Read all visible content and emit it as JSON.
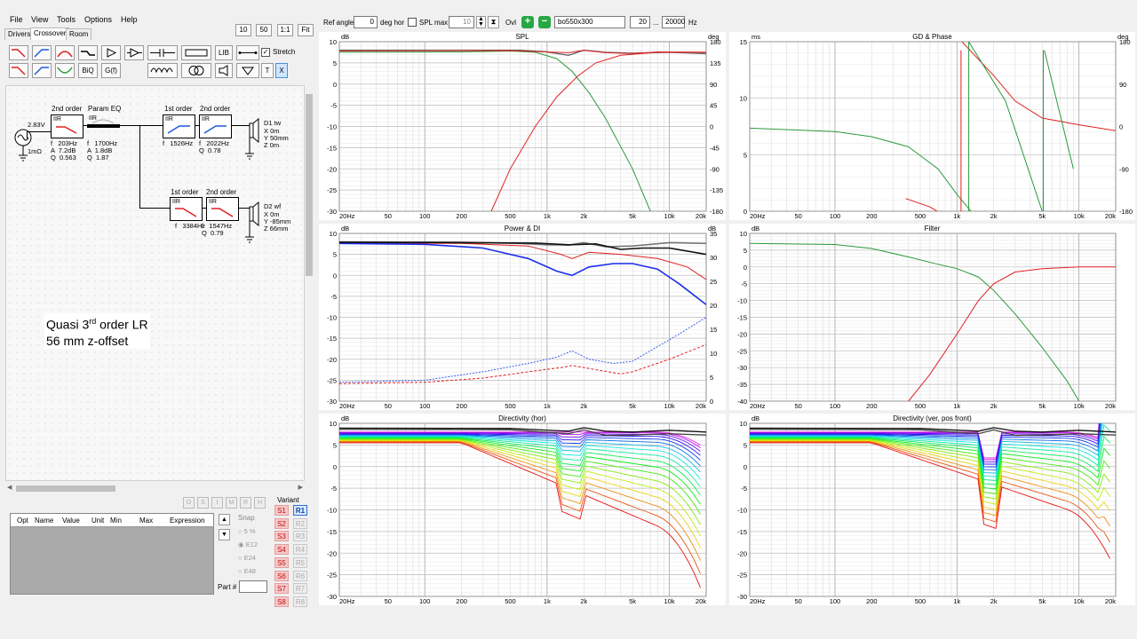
{
  "menu": [
    "File",
    "View",
    "Tools",
    "Options",
    "Help"
  ],
  "tabs": [
    "Drivers",
    "Crossover",
    "Room"
  ],
  "zoom_buttons": [
    "10",
    "50",
    "1:1",
    "Fit"
  ],
  "toolbar": {
    "biq": "BiQ",
    "gf": "G(f)",
    "lib": "LIB",
    "stretch": "Stretch",
    "t": "T",
    "x": "X"
  },
  "top_controls": {
    "ref_angle_label": "Ref angle",
    "ref_angle_value": "0",
    "deg_hor": "deg hor",
    "spl_max": "SPL max",
    "spl_max_value": "10",
    "ovl": "Ovl",
    "ovl_value": "bo550x300",
    "f_min": "20",
    "dots": "...",
    "f_max": "20000",
    "hz": "Hz"
  },
  "schematic": {
    "source": {
      "voltage": "2.83V",
      "impedance": "1mΩ"
    },
    "hp_block": {
      "title": "2nd order",
      "type": "IIR",
      "params": "f   203Hz\nA  7.2dB\nQ  0.563"
    },
    "peq_block": {
      "title": "Param EQ",
      "type": "IIR",
      "params": "f   1700Hz\nA  1.8dB\nQ  1.87"
    },
    "tw_hp1": {
      "title": "1st order",
      "type": "IIR",
      "params": "f   1526Hz"
    },
    "tw_hp2": {
      "title": "2nd order",
      "type": "IIR",
      "params": "f   2022Hz\nQ  0.78"
    },
    "wf_lp1": {
      "title": "1st order",
      "type": "IIR",
      "params": "f   3384Hz"
    },
    "wf_lp2": {
      "title": "2nd order",
      "type": "IIR",
      "params": "f   1547Hz\nQ  0.79"
    },
    "d1": {
      "name": "D1 tw",
      "lines": "X 0m\nY 50mm\nZ 0m"
    },
    "d2": {
      "name": "D2 wf",
      "lines": "X 0m\nY -85mm\nZ 66mm"
    },
    "note1_pre": "Quasi 3",
    "note1_sup": "rd",
    "note1_post": " order LR",
    "note2": "56 mm z-offset"
  },
  "param_table": {
    "columns": [
      "Opt",
      "Name",
      "Value",
      "Unit",
      "Min",
      "Max",
      "Expression"
    ],
    "side_buttons": [
      "O",
      "S",
      "I",
      "M",
      "R",
      "H"
    ],
    "snap": "Snap",
    "snap_options": [
      "5 %",
      "E12",
      "E24",
      "E48"
    ],
    "part": "Part #"
  },
  "variants": {
    "label": "Variant",
    "s": [
      "S1",
      "S2",
      "S3",
      "S4",
      "S5",
      "S6",
      "S7",
      "S8"
    ],
    "r": [
      "R1",
      "R2",
      "R3",
      "R4",
      "R5",
      "R6",
      "R7",
      "R8"
    ]
  },
  "graphs": {
    "spl": {
      "title": "SPL",
      "yunit": "dB",
      "y2unit": "deg",
      "yticks": [
        "10",
        "5",
        "0",
        "-5",
        "-10",
        "-15",
        "-20",
        "-25",
        "-30"
      ],
      "y2ticks": [
        "180",
        "135",
        "90",
        "45",
        "0",
        "-45",
        "-90",
        "-135",
        "-180"
      ]
    },
    "gd": {
      "title": "GD & Phase",
      "yunit": "ms",
      "y2unit": "deg",
      "yticks": [
        "15",
        "10",
        "5",
        "0"
      ],
      "y2ticks": [
        "180",
        "90",
        "0",
        "-90",
        "-180"
      ]
    },
    "power": {
      "title": "Power & DI",
      "yunit": "dB",
      "y2unit": "dB",
      "yticks": [
        "10",
        "5",
        "0",
        "-5",
        "-10",
        "-15",
        "-20",
        "-25",
        "-30"
      ],
      "y2ticks": [
        "35",
        "30",
        "25",
        "20",
        "15",
        "10",
        "5",
        "0"
      ]
    },
    "filter": {
      "title": "Filter",
      "yunit": "dB",
      "yticks": [
        "10",
        "5",
        "0",
        "-5",
        "-10",
        "-15",
        "-20",
        "-25",
        "-30",
        "-35",
        "-40"
      ]
    },
    "dir_hor": {
      "title": "Directivity (hor)",
      "yunit": "dB",
      "yticks": [
        "10",
        "5",
        "0",
        "-5",
        "-10",
        "-15",
        "-20",
        "-25",
        "-30"
      ]
    },
    "dir_ver": {
      "title": "Directivity (ver, pos front)",
      "yunit": "dB",
      "yticks": [
        "10",
        "5",
        "0",
        "-5",
        "-10",
        "-15",
        "-20",
        "-25",
        "-30"
      ]
    },
    "xticks": [
      "20Hz",
      "50",
      "100",
      "200",
      "500",
      "1k",
      "2k",
      "5k",
      "10k",
      "20k"
    ]
  },
  "colors": {
    "accent_blue": "#1e5bd8",
    "red": "#e02020",
    "green": "#2a9a3a",
    "black": "#222222"
  }
}
